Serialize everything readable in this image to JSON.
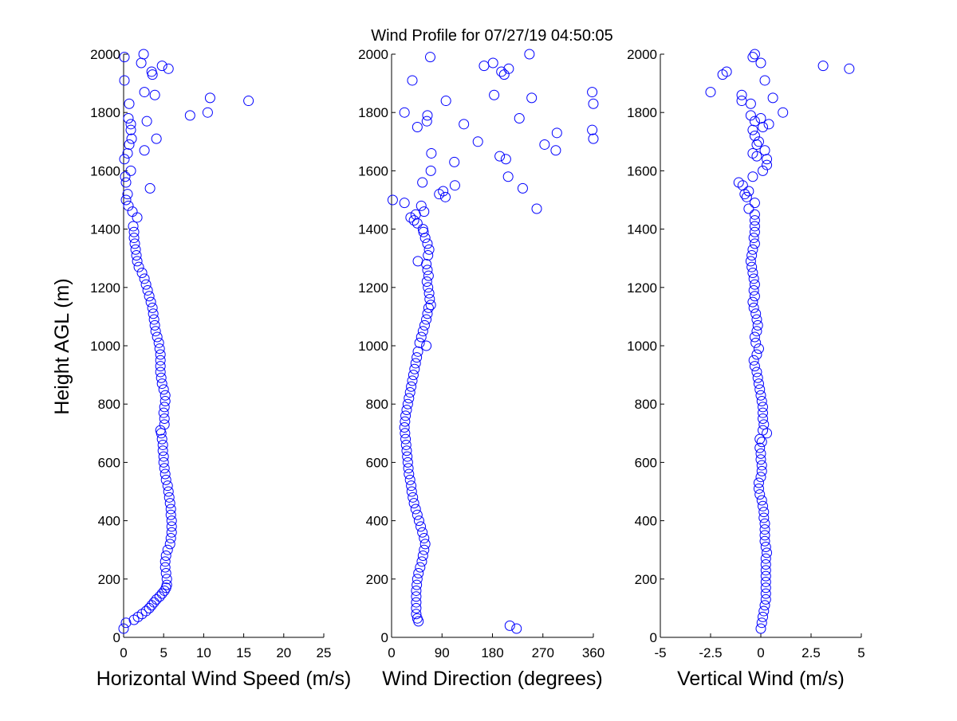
{
  "figure": {
    "title": "Wind Profile for  07/27/19 04:50:05",
    "ylabel": "Height AGL (m)"
  },
  "chart_data": [
    {
      "type": "scatter",
      "xlabel": "Horizontal Wind Speed (m/s)",
      "ylabel": "Height AGL (m)",
      "xlim": [
        0,
        25
      ],
      "ylim": [
        0,
        2000
      ],
      "xticks": [
        0,
        5,
        10,
        15,
        20,
        25
      ],
      "xtick_labels": [
        "0",
        "5",
        "10",
        "15",
        "20",
        "25"
      ],
      "yticks": [
        0,
        200,
        400,
        600,
        800,
        1000,
        1200,
        1400,
        1600,
        1800,
        2000
      ],
      "ytick_labels": [
        "0",
        "200",
        "400",
        "600",
        "800",
        "1000",
        "1200",
        "1400",
        "1600",
        "1800",
        "2000"
      ],
      "grid": false,
      "color": "#0000ff",
      "points": [
        [
          0.0,
          30
        ],
        [
          0.3,
          50
        ],
        [
          1.3,
          60
        ],
        [
          1.8,
          70
        ],
        [
          2.3,
          80
        ],
        [
          2.8,
          90
        ],
        [
          3.2,
          100
        ],
        [
          3.5,
          110
        ],
        [
          3.8,
          120
        ],
        [
          4.1,
          130
        ],
        [
          4.5,
          140
        ],
        [
          4.8,
          150
        ],
        [
          5.1,
          160
        ],
        [
          5.3,
          170
        ],
        [
          5.4,
          180
        ],
        [
          5.4,
          200
        ],
        [
          5.3,
          220
        ],
        [
          5.2,
          240
        ],
        [
          5.2,
          260
        ],
        [
          5.3,
          280
        ],
        [
          5.5,
          300
        ],
        [
          5.8,
          320
        ],
        [
          5.9,
          340
        ],
        [
          6.0,
          360
        ],
        [
          6.0,
          380
        ],
        [
          6.0,
          400
        ],
        [
          5.9,
          420
        ],
        [
          5.9,
          440
        ],
        [
          5.8,
          460
        ],
        [
          5.7,
          480
        ],
        [
          5.6,
          500
        ],
        [
          5.5,
          520
        ],
        [
          5.3,
          540
        ],
        [
          5.2,
          560
        ],
        [
          5.1,
          580
        ],
        [
          5.0,
          600
        ],
        [
          5.0,
          620
        ],
        [
          4.9,
          640
        ],
        [
          4.9,
          660
        ],
        [
          4.8,
          680
        ],
        [
          4.7,
          700
        ],
        [
          4.6,
          710
        ],
        [
          5.1,
          730
        ],
        [
          5.1,
          750
        ],
        [
          5.0,
          770
        ],
        [
          5.1,
          790
        ],
        [
          5.2,
          810
        ],
        [
          5.2,
          830
        ],
        [
          5.0,
          850
        ],
        [
          4.8,
          870
        ],
        [
          4.7,
          890
        ],
        [
          4.6,
          910
        ],
        [
          4.6,
          930
        ],
        [
          4.6,
          950
        ],
        [
          4.6,
          970
        ],
        [
          4.5,
          990
        ],
        [
          4.4,
          1010
        ],
        [
          4.2,
          1030
        ],
        [
          4.0,
          1050
        ],
        [
          3.9,
          1070
        ],
        [
          3.8,
          1090
        ],
        [
          3.7,
          1110
        ],
        [
          3.6,
          1130
        ],
        [
          3.4,
          1150
        ],
        [
          3.2,
          1170
        ],
        [
          3.0,
          1190
        ],
        [
          2.8,
          1210
        ],
        [
          2.6,
          1230
        ],
        [
          2.3,
          1250
        ],
        [
          1.9,
          1270
        ],
        [
          1.7,
          1290
        ],
        [
          1.6,
          1310
        ],
        [
          1.5,
          1330
        ],
        [
          1.4,
          1350
        ],
        [
          1.3,
          1370
        ],
        [
          1.3,
          1390
        ],
        [
          1.2,
          1410
        ],
        [
          1.7,
          1440
        ],
        [
          1.1,
          1460
        ],
        [
          0.6,
          1480
        ],
        [
          0.3,
          1500
        ],
        [
          0.5,
          1520
        ],
        [
          3.3,
          1540
        ],
        [
          0.3,
          1560
        ],
        [
          0.2,
          1580
        ],
        [
          0.9,
          1600
        ],
        [
          0.1,
          1640
        ],
        [
          0.5,
          1660
        ],
        [
          2.6,
          1670
        ],
        [
          0.7,
          1690
        ],
        [
          1.0,
          1710
        ],
        [
          4.1,
          1710
        ],
        [
          0.9,
          1740
        ],
        [
          0.9,
          1760
        ],
        [
          2.9,
          1770
        ],
        [
          0.6,
          1780
        ],
        [
          8.3,
          1790
        ],
        [
          10.5,
          1800
        ],
        [
          0.7,
          1830
        ],
        [
          15.6,
          1840
        ],
        [
          10.8,
          1850
        ],
        [
          3.9,
          1860
        ],
        [
          2.6,
          1870
        ],
        [
          0.1,
          1910
        ],
        [
          3.6,
          1930
        ],
        [
          3.5,
          1940
        ],
        [
          5.6,
          1950
        ],
        [
          4.8,
          1960
        ],
        [
          2.2,
          1970
        ],
        [
          0.1,
          1990
        ],
        [
          2.5,
          2000
        ]
      ]
    },
    {
      "type": "scatter",
      "xlabel": "Wind Direction (degrees)",
      "ylabel": "",
      "xlim": [
        0,
        360
      ],
      "ylim": [
        0,
        2000
      ],
      "xticks": [
        0,
        90,
        180,
        270,
        360
      ],
      "xtick_labels": [
        "0",
        "90",
        "180",
        "270",
        "360"
      ],
      "yticks": [
        0,
        200,
        400,
        600,
        800,
        1000,
        1200,
        1400,
        1600,
        1800,
        2000
      ],
      "ytick_labels": [
        "0",
        "200",
        "400",
        "600",
        "800",
        "1000",
        "1200",
        "1400",
        "1600",
        "1800",
        "2000"
      ],
      "grid": false,
      "color": "#0000ff",
      "points": [
        [
          223,
          30
        ],
        [
          211,
          40
        ],
        [
          48,
          55
        ],
        [
          46,
          65
        ],
        [
          44,
          80
        ],
        [
          44,
          100
        ],
        [
          44,
          120
        ],
        [
          44,
          140
        ],
        [
          44,
          160
        ],
        [
          45,
          180
        ],
        [
          46,
          200
        ],
        [
          48,
          220
        ],
        [
          51,
          240
        ],
        [
          54,
          260
        ],
        [
          56,
          280
        ],
        [
          58,
          300
        ],
        [
          60,
          320
        ],
        [
          58,
          340
        ],
        [
          55,
          360
        ],
        [
          52,
          380
        ],
        [
          49,
          400
        ],
        [
          46,
          420
        ],
        [
          43,
          440
        ],
        [
          40,
          460
        ],
        [
          38,
          480
        ],
        [
          36,
          500
        ],
        [
          35,
          520
        ],
        [
          33,
          540
        ],
        [
          31,
          560
        ],
        [
          30,
          580
        ],
        [
          29,
          600
        ],
        [
          28,
          620
        ],
        [
          27,
          640
        ],
        [
          26,
          660
        ],
        [
          25,
          680
        ],
        [
          24,
          700
        ],
        [
          23,
          720
        ],
        [
          24,
          740
        ],
        [
          25,
          760
        ],
        [
          27,
          780
        ],
        [
          29,
          800
        ],
        [
          31,
          820
        ],
        [
          33,
          840
        ],
        [
          35,
          860
        ],
        [
          37,
          880
        ],
        [
          39,
          900
        ],
        [
          41,
          920
        ],
        [
          43,
          940
        ],
        [
          45,
          960
        ],
        [
          47,
          980
        ],
        [
          62,
          1000
        ],
        [
          50,
          1010
        ],
        [
          53,
          1030
        ],
        [
          56,
          1050
        ],
        [
          59,
          1070
        ],
        [
          62,
          1090
        ],
        [
          64,
          1110
        ],
        [
          66,
          1130
        ],
        [
          70,
          1140
        ],
        [
          68,
          1160
        ],
        [
          67,
          1180
        ],
        [
          65,
          1200
        ],
        [
          63,
          1220
        ],
        [
          66,
          1240
        ],
        [
          64,
          1260
        ],
        [
          62,
          1280
        ],
        [
          47,
          1290
        ],
        [
          65,
          1310
        ],
        [
          67,
          1330
        ],
        [
          64,
          1350
        ],
        [
          60,
          1370
        ],
        [
          57,
          1390
        ],
        [
          56,
          1400
        ],
        [
          46,
          1420
        ],
        [
          40,
          1430
        ],
        [
          34,
          1440
        ],
        [
          43,
          1450
        ],
        [
          58,
          1460
        ],
        [
          53,
          1480
        ],
        [
          259,
          1470
        ],
        [
          2,
          1500
        ],
        [
          23,
          1490
        ],
        [
          96,
          1510
        ],
        [
          85,
          1520
        ],
        [
          113,
          1550
        ],
        [
          55,
          1560
        ],
        [
          234,
          1540
        ],
        [
          92,
          1530
        ],
        [
          208,
          1580
        ],
        [
          70,
          1600
        ],
        [
          204,
          1640
        ],
        [
          193,
          1650
        ],
        [
          112,
          1630
        ],
        [
          71,
          1660
        ],
        [
          293,
          1670
        ],
        [
          154,
          1700
        ],
        [
          273,
          1690
        ],
        [
          360,
          1710
        ],
        [
          358,
          1740
        ],
        [
          295,
          1730
        ],
        [
          63,
          1770
        ],
        [
          46,
          1750
        ],
        [
          129,
          1760
        ],
        [
          228,
          1780
        ],
        [
          64,
          1790
        ],
        [
          23,
          1800
        ],
        [
          360,
          1830
        ],
        [
          97,
          1840
        ],
        [
          250,
          1850
        ],
        [
          358,
          1870
        ],
        [
          183,
          1860
        ],
        [
          37,
          1910
        ],
        [
          196,
          1940
        ],
        [
          201,
          1930
        ],
        [
          209,
          1950
        ],
        [
          165,
          1960
        ],
        [
          181,
          1970
        ],
        [
          69,
          1990
        ],
        [
          246,
          2000
        ]
      ]
    },
    {
      "type": "scatter",
      "xlabel": "Vertical Wind (m/s)",
      "ylabel": "",
      "xlim": [
        -5,
        5
      ],
      "ylim": [
        0,
        2000
      ],
      "xticks": [
        -5,
        -2.5,
        0,
        2.5,
        5
      ],
      "xtick_labels": [
        "-5",
        "-2.5",
        "0",
        "2.5",
        "5"
      ],
      "yticks": [
        0,
        200,
        400,
        600,
        800,
        1000,
        1200,
        1400,
        1600,
        1800,
        2000
      ],
      "ytick_labels": [
        "0",
        "200",
        "400",
        "600",
        "800",
        "1000",
        "1200",
        "1400",
        "1600",
        "1800",
        "2000"
      ],
      "grid": false,
      "color": "#0000ff",
      "points": [
        [
          0.0,
          30
        ],
        [
          0.05,
          50
        ],
        [
          0.1,
          70
        ],
        [
          0.15,
          90
        ],
        [
          0.2,
          110
        ],
        [
          0.25,
          130
        ],
        [
          0.25,
          150
        ],
        [
          0.25,
          170
        ],
        [
          0.25,
          190
        ],
        [
          0.25,
          210
        ],
        [
          0.25,
          230
        ],
        [
          0.25,
          250
        ],
        [
          0.25,
          270
        ],
        [
          0.3,
          290
        ],
        [
          0.25,
          310
        ],
        [
          0.2,
          330
        ],
        [
          0.2,
          350
        ],
        [
          0.2,
          370
        ],
        [
          0.2,
          390
        ],
        [
          0.15,
          410
        ],
        [
          0.15,
          430
        ],
        [
          0.1,
          450
        ],
        [
          0.05,
          470
        ],
        [
          -0.05,
          490
        ],
        [
          -0.1,
          510
        ],
        [
          -0.1,
          530
        ],
        [
          0.0,
          550
        ],
        [
          0.05,
          570
        ],
        [
          0.05,
          590
        ],
        [
          0.0,
          610
        ],
        [
          0.0,
          630
        ],
        [
          -0.05,
          650
        ],
        [
          0.05,
          670
        ],
        [
          -0.05,
          680
        ],
        [
          0.3,
          700
        ],
        [
          0.1,
          710
        ],
        [
          0.15,
          730
        ],
        [
          0.1,
          750
        ],
        [
          0.1,
          770
        ],
        [
          0.1,
          790
        ],
        [
          0.05,
          810
        ],
        [
          0.0,
          830
        ],
        [
          -0.05,
          850
        ],
        [
          -0.1,
          870
        ],
        [
          -0.15,
          890
        ],
        [
          -0.2,
          910
        ],
        [
          -0.3,
          930
        ],
        [
          -0.35,
          950
        ],
        [
          -0.2,
          970
        ],
        [
          -0.1,
          990
        ],
        [
          -0.25,
          1010
        ],
        [
          -0.3,
          1030
        ],
        [
          -0.2,
          1050
        ],
        [
          -0.15,
          1070
        ],
        [
          -0.2,
          1090
        ],
        [
          -0.25,
          1110
        ],
        [
          -0.35,
          1130
        ],
        [
          -0.4,
          1150
        ],
        [
          -0.3,
          1170
        ],
        [
          -0.35,
          1190
        ],
        [
          -0.3,
          1210
        ],
        [
          -0.35,
          1230
        ],
        [
          -0.4,
          1250
        ],
        [
          -0.45,
          1270
        ],
        [
          -0.5,
          1290
        ],
        [
          -0.45,
          1310
        ],
        [
          -0.4,
          1330
        ],
        [
          -0.3,
          1350
        ],
        [
          -0.35,
          1370
        ],
        [
          -0.3,
          1390
        ],
        [
          -0.3,
          1410
        ],
        [
          -0.3,
          1430
        ],
        [
          -0.3,
          1450
        ],
        [
          -0.6,
          1470
        ],
        [
          -0.3,
          1490
        ],
        [
          -0.7,
          1510
        ],
        [
          -0.8,
          1520
        ],
        [
          -0.6,
          1530
        ],
        [
          -0.9,
          1550
        ],
        [
          -1.1,
          1560
        ],
        [
          -0.4,
          1580
        ],
        [
          0.1,
          1600
        ],
        [
          0.3,
          1620
        ],
        [
          0.3,
          1640
        ],
        [
          -0.2,
          1650
        ],
        [
          -0.4,
          1660
        ],
        [
          0.2,
          1670
        ],
        [
          -0.2,
          1690
        ],
        [
          -0.1,
          1700
        ],
        [
          -0.3,
          1720
        ],
        [
          -0.4,
          1740
        ],
        [
          0.1,
          1750
        ],
        [
          0.4,
          1760
        ],
        [
          -0.3,
          1770
        ],
        [
          0.0,
          1780
        ],
        [
          -0.5,
          1790
        ],
        [
          1.1,
          1800
        ],
        [
          -0.5,
          1830
        ],
        [
          -0.95,
          1840
        ],
        [
          -0.95,
          1860
        ],
        [
          0.6,
          1850
        ],
        [
          -2.5,
          1870
        ],
        [
          0.2,
          1910
        ],
        [
          -1.9,
          1930
        ],
        [
          -1.7,
          1940
        ],
        [
          4.4,
          1950
        ],
        [
          3.1,
          1960
        ],
        [
          0.0,
          1970
        ],
        [
          -0.4,
          1990
        ],
        [
          -0.3,
          2000
        ]
      ]
    }
  ]
}
